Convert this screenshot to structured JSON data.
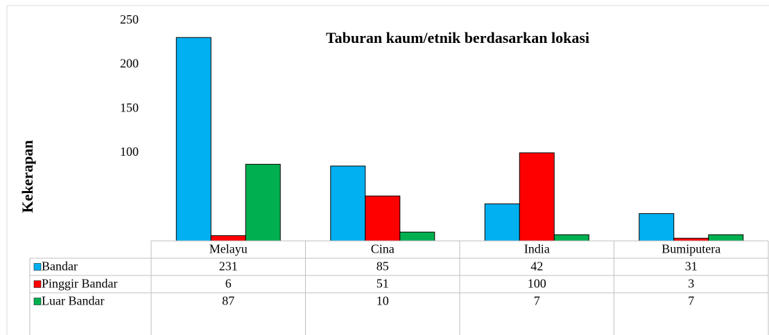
{
  "chart_data": {
    "type": "bar",
    "title": "Taburan kaum/etnik berdasarkan lokasi",
    "y_label": "Kekerapan",
    "categories": [
      "Melayu",
      "Cina",
      "India",
      "Bumiputera"
    ],
    "series": [
      {
        "name": "Bandar",
        "color": "#00b0f0",
        "values": [
          231,
          85,
          42,
          31
        ]
      },
      {
        "name": "Pinggir Bandar",
        "color": "#ff0000",
        "values": [
          6,
          51,
          100,
          3
        ]
      },
      {
        "name": "Luar Bandar",
        "color": "#00b050",
        "values": [
          87,
          10,
          7,
          7
        ]
      }
    ],
    "ylim": [
      0,
      250
    ],
    "yticks": [
      100,
      150,
      200,
      250
    ],
    "grid": false
  }
}
